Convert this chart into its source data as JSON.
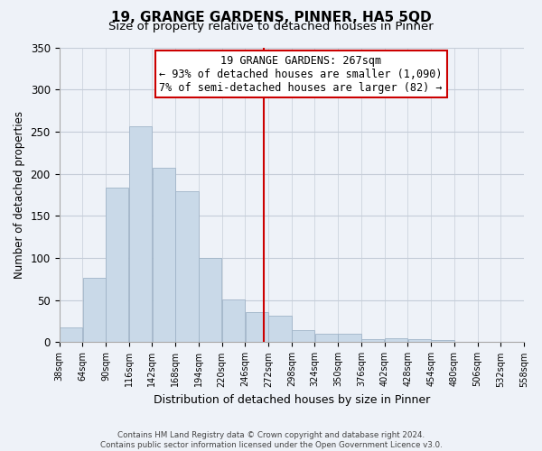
{
  "title_line1": "19, GRANGE GARDENS, PINNER, HA5 5QD",
  "title_line2": "Size of property relative to detached houses in Pinner",
  "xlabel": "Distribution of detached houses by size in Pinner",
  "ylabel": "Number of detached properties",
  "bar_edges": [
    38,
    64,
    90,
    116,
    142,
    168,
    194,
    220,
    246,
    272,
    298,
    324,
    350,
    376,
    402,
    428,
    454,
    480,
    506,
    532,
    558
  ],
  "bar_heights": [
    18,
    77,
    183,
    256,
    207,
    179,
    100,
    51,
    36,
    31,
    14,
    10,
    10,
    4,
    5,
    4,
    3,
    1,
    0,
    1
  ],
  "bar_color": "#c9d9e8",
  "bar_edge_color": "#a0b4c8",
  "property_line_x": 267,
  "annotation_title": "19 GRANGE GARDENS: 267sqm",
  "annotation_line1": "← 93% of detached houses are smaller (1,090)",
  "annotation_line2": "7% of semi-detached houses are larger (82) →",
  "box_facecolor": "white",
  "box_edgecolor": "#cc0000",
  "line_color": "#cc0000",
  "ylim": [
    0,
    350
  ],
  "yticks": [
    0,
    50,
    100,
    150,
    200,
    250,
    300,
    350
  ],
  "tick_labels": [
    "38sqm",
    "64sqm",
    "90sqm",
    "116sqm",
    "142sqm",
    "168sqm",
    "194sqm",
    "220sqm",
    "246sqm",
    "272sqm",
    "298sqm",
    "324sqm",
    "350sqm",
    "376sqm",
    "402sqm",
    "428sqm",
    "454sqm",
    "480sqm",
    "506sqm",
    "532sqm",
    "558sqm"
  ],
  "footer1": "Contains HM Land Registry data © Crown copyright and database right 2024.",
  "footer2": "Contains public sector information licensed under the Open Government Licence v3.0.",
  "bg_color": "#eef2f8",
  "plot_bg_color": "#eef2f8",
  "grid_color": "#c5cdd8"
}
